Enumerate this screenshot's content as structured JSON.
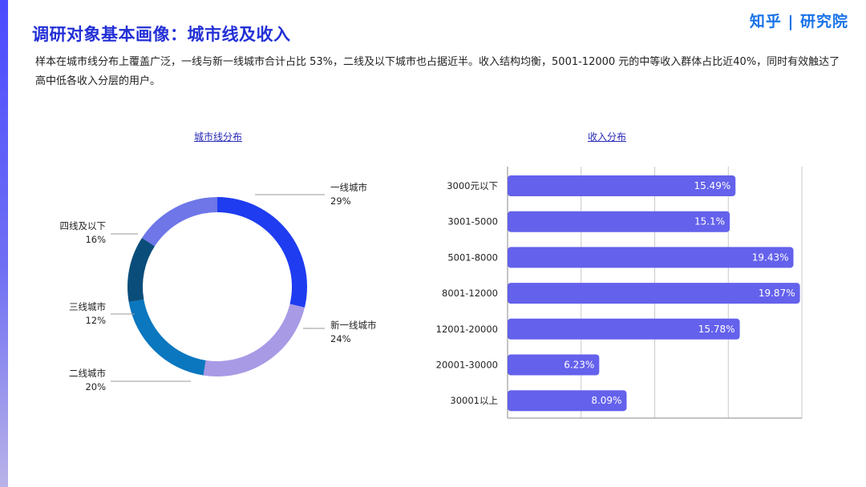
{
  "header": {
    "title": "调研对象基本画像：城市线及收入",
    "brand": "知乎 | 研究院",
    "description": "样本在城市线分布上覆盖广泛，一线与新一线城市合计占比 53%，二线及以下城市也占据近半。收入结构均衡，5001-12000 元的中等收入群体占比近40%，同时有效触达了高中低各收入分层的用户。"
  },
  "chart_data": [
    {
      "type": "pie",
      "title": "城市线分布",
      "donut": true,
      "slices": [
        {
          "label": "一线城市",
          "value": 29,
          "color": "#1f3cf0"
        },
        {
          "label": "新一线城市",
          "value": 24,
          "color": "#a99ae6"
        },
        {
          "label": "二线城市",
          "value": 20,
          "color": "#0a77bf"
        },
        {
          "label": "三线城市",
          "value": 12,
          "color": "#0b4d7a"
        },
        {
          "label": "四线及以下",
          "value": 16,
          "color": "#6e76e8"
        }
      ]
    },
    {
      "type": "bar",
      "orientation": "horizontal",
      "title": "收入分布",
      "categories": [
        "3000元以下",
        "3001-5000",
        "5001-8000",
        "8001-12000",
        "12001-20000",
        "20001-30000",
        "30001以上"
      ],
      "values": [
        15.49,
        15.1,
        19.43,
        19.87,
        15.78,
        6.23,
        8.09
      ],
      "value_labels": [
        "15.49%",
        "15.1%",
        "19.43%",
        "19.87%",
        "15.78%",
        "6.23%",
        "8.09%"
      ],
      "xlim": [
        0,
        20
      ],
      "grid": true,
      "bar_color": "#6461ec"
    }
  ]
}
